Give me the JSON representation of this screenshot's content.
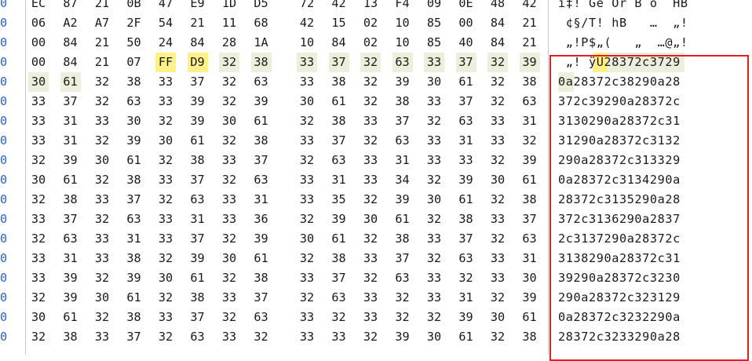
{
  "hex_view": {
    "offset_glyph": "0",
    "rows": [
      {
        "bytes": [
          "EC",
          "87",
          "21",
          "0B",
          "47",
          "E9",
          "1D",
          "D5",
          "72",
          "42",
          "13",
          "F4",
          "09",
          "0E",
          "48",
          "42"
        ],
        "ascii": "î‡! Gé Õr B ô  HB"
      },
      {
        "bytes": [
          "06",
          "A2",
          "A7",
          "2F",
          "54",
          "21",
          "11",
          "68",
          "42",
          "15",
          "02",
          "10",
          "85",
          "00",
          "84",
          "21"
        ],
        "ascii": " ¢§/T! hB   …  „!"
      },
      {
        "bytes": [
          "00",
          "84",
          "21",
          "50",
          "24",
          "84",
          "28",
          "1A",
          "10",
          "84",
          "02",
          "10",
          "85",
          "40",
          "84",
          "21"
        ],
        "ascii": " „!P$„(   „  …@„!"
      },
      {
        "bytes": [
          "00",
          "84",
          "21",
          "07",
          "FF",
          "D9",
          "32",
          "38",
          "33",
          "37",
          "32",
          "63",
          "33",
          "37",
          "32",
          "39"
        ],
        "ascii": " „! ÿÙ28372c3729"
      },
      {
        "bytes": [
          "30",
          "61",
          "32",
          "38",
          "33",
          "37",
          "32",
          "63",
          "33",
          "38",
          "32",
          "39",
          "30",
          "61",
          "32",
          "38"
        ],
        "ascii": "0a28372c38290a28"
      },
      {
        "bytes": [
          "33",
          "37",
          "32",
          "63",
          "33",
          "39",
          "32",
          "39",
          "30",
          "61",
          "32",
          "38",
          "33",
          "37",
          "32",
          "63"
        ],
        "ascii": "372c39290a28372c"
      },
      {
        "bytes": [
          "33",
          "31",
          "33",
          "30",
          "32",
          "39",
          "30",
          "61",
          "32",
          "38",
          "33",
          "37",
          "32",
          "63",
          "33",
          "31"
        ],
        "ascii": "3130290a28372c31"
      },
      {
        "bytes": [
          "33",
          "31",
          "32",
          "39",
          "30",
          "61",
          "32",
          "38",
          "33",
          "37",
          "32",
          "63",
          "33",
          "31",
          "33",
          "32"
        ],
        "ascii": "31290a28372c3132"
      },
      {
        "bytes": [
          "32",
          "39",
          "30",
          "61",
          "32",
          "38",
          "33",
          "37",
          "32",
          "63",
          "33",
          "31",
          "33",
          "33",
          "32",
          "39"
        ],
        "ascii": "290a28372c313329"
      },
      {
        "bytes": [
          "30",
          "61",
          "32",
          "38",
          "33",
          "37",
          "32",
          "63",
          "33",
          "31",
          "33",
          "34",
          "32",
          "39",
          "30",
          "61"
        ],
        "ascii": "0a28372c3134290a"
      },
      {
        "bytes": [
          "32",
          "38",
          "33",
          "37",
          "32",
          "63",
          "33",
          "31",
          "33",
          "35",
          "32",
          "39",
          "30",
          "61",
          "32",
          "38"
        ],
        "ascii": "28372c3135290a28"
      },
      {
        "bytes": [
          "33",
          "37",
          "32",
          "63",
          "33",
          "31",
          "33",
          "36",
          "32",
          "39",
          "30",
          "61",
          "32",
          "38",
          "33",
          "37"
        ],
        "ascii": "372c3136290a2837"
      },
      {
        "bytes": [
          "32",
          "63",
          "33",
          "31",
          "33",
          "37",
          "32",
          "39",
          "30",
          "61",
          "32",
          "38",
          "33",
          "37",
          "32",
          "63"
        ],
        "ascii": "2c3137290a28372c"
      },
      {
        "bytes": [
          "33",
          "31",
          "33",
          "38",
          "32",
          "39",
          "30",
          "61",
          "32",
          "38",
          "33",
          "37",
          "32",
          "63",
          "33",
          "31"
        ],
        "ascii": "3138290a28372c31"
      },
      {
        "bytes": [
          "33",
          "39",
          "32",
          "39",
          "30",
          "61",
          "32",
          "38",
          "33",
          "37",
          "32",
          "63",
          "33",
          "32",
          "33",
          "30"
        ],
        "ascii": "39290a28372c3230"
      },
      {
        "bytes": [
          "32",
          "39",
          "30",
          "61",
          "32",
          "38",
          "33",
          "37",
          "32",
          "63",
          "33",
          "32",
          "33",
          "31",
          "32",
          "39"
        ],
        "ascii": "290a28372c323129"
      },
      {
        "bytes": [
          "30",
          "61",
          "32",
          "38",
          "33",
          "37",
          "32",
          "63",
          "33",
          "32",
          "33",
          "32",
          "32",
          "39",
          "30",
          "61"
        ],
        "ascii": "0a28372c3232290a"
      },
      {
        "bytes": [
          "32",
          "38",
          "33",
          "37",
          "32",
          "63",
          "33",
          "32",
          "33",
          "33",
          "32",
          "39",
          "30",
          "61",
          "32",
          "38"
        ],
        "ascii": "28372c3233290a28"
      }
    ],
    "highlighted_bytes": [
      "FF",
      "D9"
    ],
    "colors": {
      "offset": "#2266cc",
      "selection": "#eeeedd",
      "match_highlight": "#fff08a",
      "annotation_box": "#e02020"
    }
  }
}
